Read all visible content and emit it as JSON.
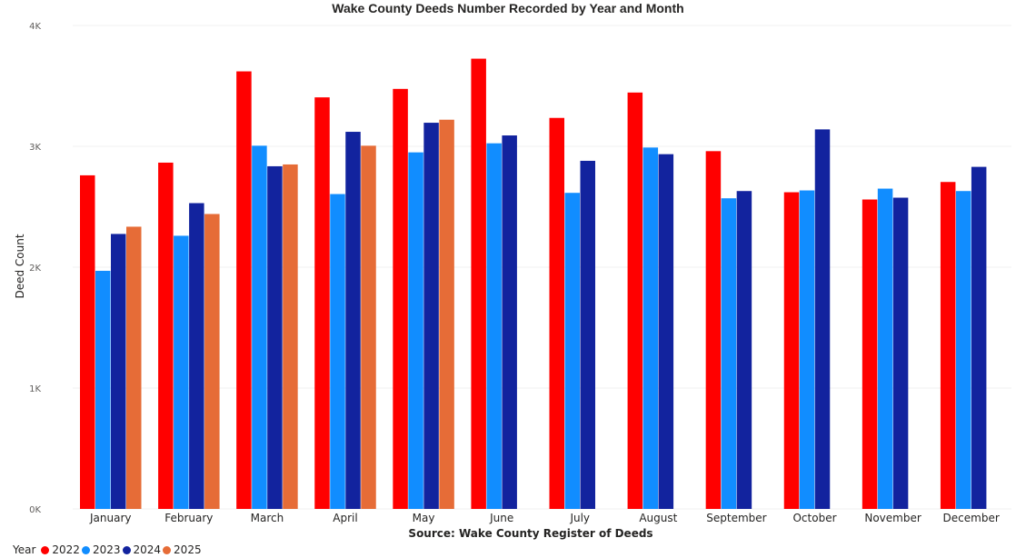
{
  "chart_data": {
    "type": "bar",
    "title": "Wake County Deeds Number Recorded by Year and Month",
    "xlabel": "Source: Wake County Register of Deeds",
    "ylabel": "Deed Count",
    "ylim": [
      0,
      4000
    ],
    "yticks": [
      0,
      1000,
      2000,
      3000,
      4000
    ],
    "ytick_labels": [
      "0K",
      "1K",
      "2K",
      "3K",
      "4K"
    ],
    "grid": true,
    "legend_title": "Year",
    "legend_position": "bottom-left",
    "categories": [
      "January",
      "February",
      "March",
      "April",
      "May",
      "June",
      "July",
      "August",
      "September",
      "October",
      "November",
      "December"
    ],
    "series": [
      {
        "name": "2022",
        "color": "#FF0000",
        "values": [
          2760,
          2865,
          3620,
          3405,
          3475,
          3725,
          3235,
          3445,
          2960,
          2620,
          2560,
          2705
        ]
      },
      {
        "name": "2023",
        "color": "#118DFF",
        "values": [
          1970,
          2260,
          3005,
          2605,
          2950,
          3025,
          2615,
          2990,
          2570,
          2635,
          2650,
          2630
        ]
      },
      {
        "name": "2024",
        "color": "#12239E",
        "values": [
          2275,
          2530,
          2835,
          3120,
          3195,
          3090,
          2880,
          2935,
          2630,
          3140,
          2575,
          2830
        ]
      },
      {
        "name": "2025",
        "color": "#E66C37",
        "values": [
          2335,
          2440,
          2850,
          3005,
          3220,
          null,
          null,
          null,
          null,
          null,
          null,
          null
        ]
      }
    ]
  }
}
